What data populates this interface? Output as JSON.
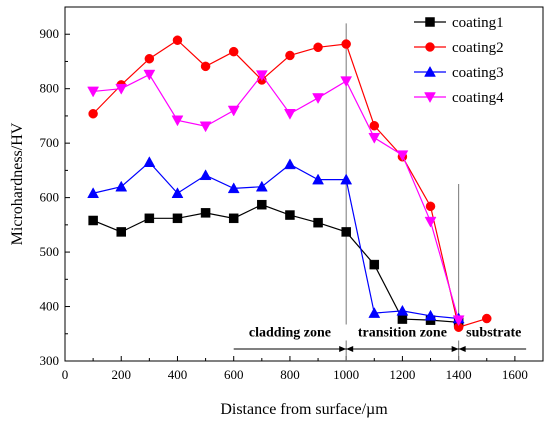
{
  "chart_data": {
    "type": "line",
    "title": "",
    "xlabel": "Distance from surface/µm",
    "ylabel": "Microhardness/HV",
    "xlim": [
      0,
      1700
    ],
    "ylim": [
      300,
      950
    ],
    "xticks": [
      0,
      200,
      400,
      600,
      800,
      1000,
      1200,
      1400,
      1600
    ],
    "yticks": [
      300,
      400,
      500,
      600,
      700,
      800,
      900
    ],
    "grid": false,
    "legend_position": "top-right",
    "series": [
      {
        "name": "coating1",
        "color": "#000000",
        "marker": "square",
        "x": [
          100,
          200,
          300,
          400,
          500,
          600,
          700,
          800,
          900,
          1000,
          1100,
          1200,
          1300,
          1400
        ],
        "y": [
          558,
          537,
          562,
          562,
          572,
          562,
          587,
          568,
          554,
          537,
          477,
          377,
          375,
          371
        ]
      },
      {
        "name": "coating2",
        "color": "#ff0000",
        "marker": "circle",
        "x": [
          100,
          200,
          300,
          400,
          500,
          600,
          700,
          800,
          900,
          1000,
          1100,
          1200,
          1300,
          1400,
          1500
        ],
        "y": [
          754,
          807,
          855,
          889,
          841,
          868,
          816,
          861,
          876,
          882,
          732,
          675,
          584,
          362,
          378
        ]
      },
      {
        "name": "coating3",
        "color": "#0000ff",
        "marker": "triangle-up",
        "x": [
          100,
          200,
          300,
          400,
          500,
          600,
          700,
          800,
          900,
          1000,
          1100,
          1200,
          1300,
          1400
        ],
        "y": [
          608,
          620,
          665,
          608,
          641,
          617,
          620,
          661,
          633,
          633,
          388,
          392,
          383,
          378
        ]
      },
      {
        "name": "coating4",
        "color": "#ff00ff",
        "marker": "triangle-down",
        "x": [
          100,
          200,
          300,
          400,
          500,
          600,
          700,
          800,
          900,
          1000,
          1100,
          1200,
          1300,
          1400
        ],
        "y": [
          795,
          800,
          826,
          742,
          731,
          760,
          825,
          754,
          783,
          814,
          710,
          678,
          556,
          375
        ]
      }
    ],
    "annotations": {
      "vertical_lines": [
        {
          "x": 1000,
          "y_top": 920
        },
        {
          "x": 1400,
          "y_top": 625
        }
      ],
      "zone_line_y": 322,
      "zones": [
        {
          "label": "cladding zone",
          "x_start": 600,
          "x_end": 1000,
          "label_x": 800,
          "label_y": 345
        },
        {
          "label": "transition zone",
          "x_start": 1000,
          "x_end": 1400,
          "label_x": 1200,
          "label_y": 345
        },
        {
          "label": "substrate",
          "x_start": 1400,
          "x_end": 1640,
          "label_x": 1525,
          "label_y": 345
        }
      ]
    }
  }
}
